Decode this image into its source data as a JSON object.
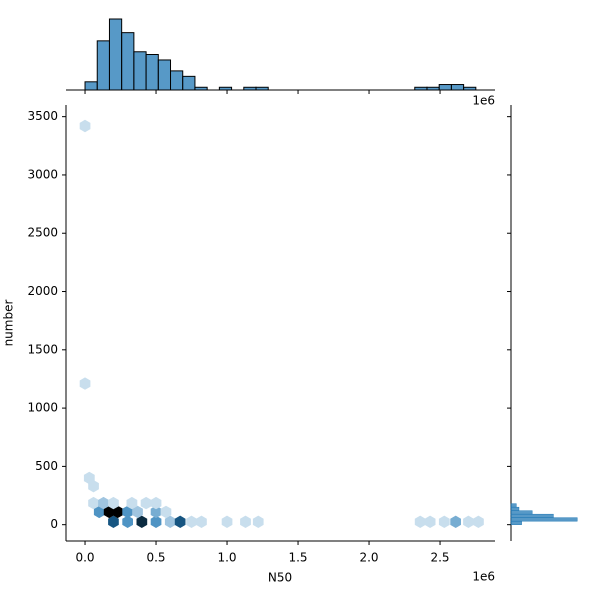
{
  "chart_data": {
    "type": "hexbin",
    "x_label": "N50",
    "y_label": "number",
    "x_offset_label": "1e6",
    "color": "#1f77b4",
    "xlim": [
      -134000,
      2887000
    ],
    "xticks": [
      {
        "value": 0,
        "label": "0.0"
      },
      {
        "value": 500000,
        "label": "0.5"
      },
      {
        "value": 1000000,
        "label": "1.0"
      },
      {
        "value": 1500000,
        "label": "1.5"
      },
      {
        "value": 2000000,
        "label": "2.0"
      },
      {
        "value": 2500000,
        "label": "2.5"
      }
    ],
    "ylim": [
      -140,
      3600
    ],
    "yticks": [
      0,
      500,
      1000,
      1500,
      2000,
      2500,
      3000,
      3500
    ],
    "x": [
      200000,
      300000,
      400000,
      500000,
      600000,
      670000,
      750000,
      820000,
      1000000,
      1130000,
      1220000,
      2360000,
      2430000,
      2530000,
      2610000,
      2700000,
      2770000,
      100000,
      170000,
      230000,
      300000,
      370000,
      500000,
      570000,
      60000,
      130000,
      200000,
      330000,
      430000,
      500000,
      0,
      0,
      30000,
      60000
    ],
    "y": [
      25,
      25,
      25,
      25,
      25,
      25,
      25,
      25,
      25,
      25,
      25,
      25,
      25,
      25,
      25,
      25,
      25,
      110,
      110,
      110,
      110,
      110,
      110,
      110,
      185,
      185,
      185,
      185,
      185,
      185,
      3420,
      1210,
      400,
      330
    ],
    "counts": [
      6,
      4,
      7,
      4,
      2,
      6,
      1,
      1,
      1,
      1,
      1,
      1,
      1,
      1,
      3,
      1,
      1,
      4,
      8,
      8,
      4,
      2,
      3,
      1,
      1,
      2,
      1,
      1,
      1,
      1,
      1,
      1,
      1,
      1
    ],
    "x_hist": {
      "bins": [
        0,
        86000,
        172000,
        258000,
        344000,
        430000,
        516000,
        602000,
        688000,
        774000,
        860000,
        946000,
        1032000,
        1118000,
        1204000,
        1290000,
        1376000,
        1462000,
        1548000,
        1634000,
        1720000,
        1806000,
        1892000,
        1978000,
        2064000,
        2150000,
        2236000,
        2322000,
        2408000,
        2494000,
        2580000,
        2666000,
        2752000
      ],
      "counts": [
        3,
        18,
        26,
        21,
        14,
        13,
        11,
        7,
        5,
        1,
        0,
        1,
        0,
        1,
        1,
        0,
        0,
        0,
        0,
        0,
        0,
        0,
        0,
        0,
        0,
        0,
        0,
        1,
        1,
        2,
        2,
        1
      ]
    },
    "y_hist": {
      "bins": [
        0,
        30,
        60,
        90,
        120,
        150,
        180
      ],
      "counts": [
        4,
        25,
        16,
        8,
        3,
        2
      ]
    }
  }
}
